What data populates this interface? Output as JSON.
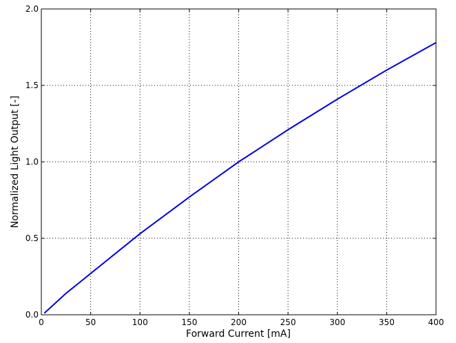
{
  "chart_data": {
    "type": "line",
    "xlabel": "Forward Current [mA]",
    "ylabel": "Normalized Light Output [-]",
    "x": [
      3,
      25,
      50,
      75,
      100,
      150,
      200,
      250,
      300,
      350,
      400
    ],
    "series": [
      {
        "color": "#0000e6",
        "values": [
          0.01,
          0.14,
          0.27,
          0.4,
          0.53,
          0.77,
          1.0,
          1.21,
          1.41,
          1.6,
          1.78
        ]
      }
    ],
    "xlim": [
      0,
      400
    ],
    "xticks": [
      0,
      50,
      100,
      150,
      200,
      250,
      300,
      350,
      400
    ],
    "ylim": [
      0,
      2.0
    ],
    "yticks": [
      {
        "value": 0,
        "label": "0.0"
      },
      {
        "value": 0.5,
        "label": "0.5"
      },
      {
        "value": 1.0,
        "label": "1.0"
      },
      {
        "value": 1.5,
        "label": "1.5"
      },
      {
        "value": 2.0,
        "label": "2.0"
      }
    ],
    "grid": true
  }
}
